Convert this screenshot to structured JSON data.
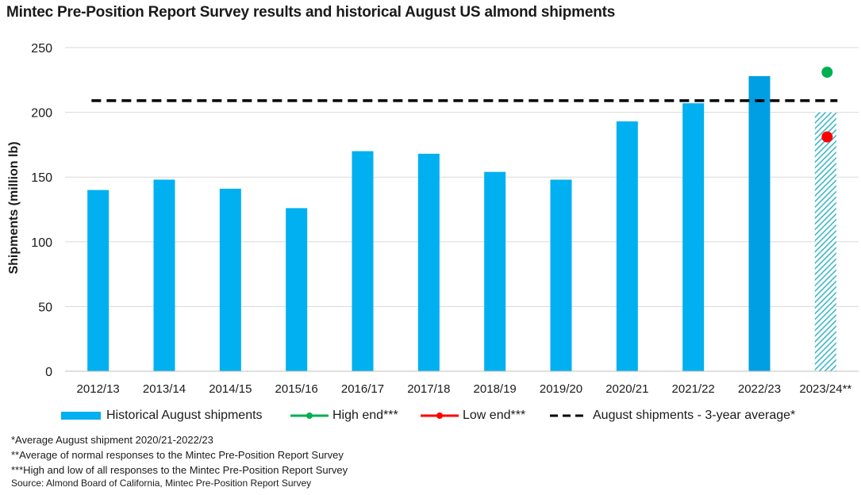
{
  "title": "Mintec Pre-Position Report Survey results and historical August US almond shipments",
  "chart_data": {
    "type": "bar",
    "ylabel": "Shipments (million lb)",
    "xlabel": "",
    "ylim": [
      0,
      250
    ],
    "yticks": [
      0,
      50,
      100,
      150,
      200,
      250
    ],
    "grid": true,
    "legend_position": "bottom",
    "categories": [
      "2012/13",
      "2013/14",
      "2014/15",
      "2015/16",
      "2016/17",
      "2017/18",
      "2018/19",
      "2019/20",
      "2020/21",
      "2021/22",
      "2022/23",
      "2023/24**"
    ],
    "series": [
      {
        "name": "Historical August shipments",
        "type": "bar",
        "color": "#00b0f0",
        "values": [
          140,
          148,
          141,
          126,
          170,
          168,
          154,
          148,
          193,
          207,
          228,
          200
        ],
        "highlight_index": 10,
        "highlight_color": "#009fe3",
        "hatched_index": 11
      },
      {
        "name": "High end***",
        "type": "point",
        "color": "#00b050",
        "category": "2023/24**",
        "value": 231
      },
      {
        "name": "Low end***",
        "type": "point",
        "color": "#ff0000",
        "category": "2023/24**",
        "value": 181
      },
      {
        "name": "August shipments - 3-year average*",
        "type": "line",
        "style": "dashed",
        "color": "#000000",
        "value": 209
      }
    ]
  },
  "notes": [
    "*Average August shipment 2020/21-2022/23",
    "**Average of normal responses to the Mintec Pre-Position Report Survey",
    "***High and low of all responses to the Mintec Pre-Position Report Survey"
  ],
  "source": "Source: Almond Board of California, Mintec Pre-Position Report Survey"
}
